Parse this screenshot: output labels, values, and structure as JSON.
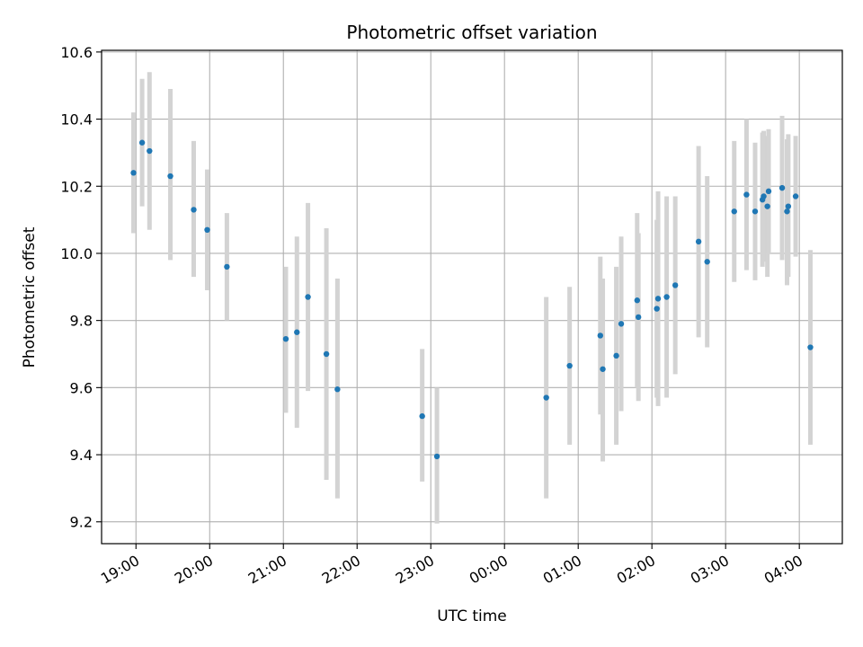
{
  "chart_data": {
    "type": "scatter",
    "title": "Photometric offset variation",
    "xlabel": "UTC time",
    "ylabel": "Photometric offset",
    "xlim": [
      "2024-01-01T18:32",
      "2024-01-02T04:35"
    ],
    "ylim": [
      9.135,
      10.605
    ],
    "grid": true,
    "legend": "none",
    "colors": {
      "point": "#1f77b4",
      "errorbar": "#d3d3d3",
      "grid": "#b0b0b0"
    },
    "x_ticks": [
      {
        "t": "2024-01-01T19:00",
        "label": "19:00"
      },
      {
        "t": "2024-01-01T20:00",
        "label": "20:00"
      },
      {
        "t": "2024-01-01T21:00",
        "label": "21:00"
      },
      {
        "t": "2024-01-01T22:00",
        "label": "22:00"
      },
      {
        "t": "2024-01-01T23:00",
        "label": "23:00"
      },
      {
        "t": "2024-01-02T00:00",
        "label": "00:00"
      },
      {
        "t": "2024-01-02T01:00",
        "label": "01:00"
      },
      {
        "t": "2024-01-02T02:00",
        "label": "02:00"
      },
      {
        "t": "2024-01-02T03:00",
        "label": "03:00"
      },
      {
        "t": "2024-01-02T04:00",
        "label": "04:00"
      }
    ],
    "y_ticks": [
      {
        "v": 9.2,
        "label": "9.2"
      },
      {
        "v": 9.4,
        "label": "9.4"
      },
      {
        "v": 9.6,
        "label": "9.6"
      },
      {
        "v": 9.8,
        "label": "9.8"
      },
      {
        "v": 10.0,
        "label": "10.0"
      },
      {
        "v": 10.2,
        "label": "10.2"
      },
      {
        "v": 10.4,
        "label": "10.4"
      },
      {
        "v": 10.6,
        "label": "10.6"
      }
    ],
    "points": [
      {
        "t": "2024-01-01T18:58",
        "y": 10.24,
        "lo": 10.06,
        "hi": 10.42
      },
      {
        "t": "2024-01-01T19:05",
        "y": 10.33,
        "lo": 10.14,
        "hi": 10.52
      },
      {
        "t": "2024-01-01T19:11",
        "y": 10.305,
        "lo": 10.07,
        "hi": 10.54
      },
      {
        "t": "2024-01-01T19:28",
        "y": 10.23,
        "lo": 9.98,
        "hi": 10.49
      },
      {
        "t": "2024-01-01T19:47",
        "y": 10.13,
        "lo": 9.93,
        "hi": 10.335
      },
      {
        "t": "2024-01-01T19:58",
        "y": 10.07,
        "lo": 9.89,
        "hi": 10.25
      },
      {
        "t": "2024-01-01T20:14",
        "y": 9.96,
        "lo": 9.8,
        "hi": 10.12
      },
      {
        "t": "2024-01-01T21:02",
        "y": 9.745,
        "lo": 9.525,
        "hi": 9.96
      },
      {
        "t": "2024-01-01T21:11",
        "y": 9.765,
        "lo": 9.48,
        "hi": 10.05
      },
      {
        "t": "2024-01-01T21:20",
        "y": 9.87,
        "lo": 9.59,
        "hi": 10.15
      },
      {
        "t": "2024-01-01T21:35",
        "y": 9.7,
        "lo": 9.325,
        "hi": 10.075
      },
      {
        "t": "2024-01-01T21:44",
        "y": 9.595,
        "lo": 9.27,
        "hi": 9.925
      },
      {
        "t": "2024-01-01T22:53",
        "y": 9.515,
        "lo": 9.32,
        "hi": 9.715
      },
      {
        "t": "2024-01-01T23:05",
        "y": 9.395,
        "lo": 9.195,
        "hi": 9.6
      },
      {
        "t": "2024-01-02T00:34",
        "y": 9.57,
        "lo": 9.27,
        "hi": 9.87
      },
      {
        "t": "2024-01-02T00:53",
        "y": 9.665,
        "lo": 9.43,
        "hi": 9.9
      },
      {
        "t": "2024-01-02T01:18",
        "y": 9.755,
        "lo": 9.52,
        "hi": 9.99
      },
      {
        "t": "2024-01-02T01:20",
        "y": 9.655,
        "lo": 9.38,
        "hi": 9.925
      },
      {
        "t": "2024-01-02T01:31",
        "y": 9.695,
        "lo": 9.43,
        "hi": 9.96
      },
      {
        "t": "2024-01-02T01:35",
        "y": 9.79,
        "lo": 9.53,
        "hi": 10.05
      },
      {
        "t": "2024-01-02T01:48",
        "y": 9.86,
        "lo": 9.6,
        "hi": 10.12
      },
      {
        "t": "2024-01-02T01:49",
        "y": 9.81,
        "lo": 9.56,
        "hi": 10.06
      },
      {
        "t": "2024-01-02T02:04",
        "y": 9.835,
        "lo": 9.57,
        "hi": 10.1
      },
      {
        "t": "2024-01-02T02:05",
        "y": 9.865,
        "lo": 9.545,
        "hi": 10.185
      },
      {
        "t": "2024-01-02T02:12",
        "y": 9.87,
        "lo": 9.57,
        "hi": 10.17
      },
      {
        "t": "2024-01-02T02:19",
        "y": 9.905,
        "lo": 9.64,
        "hi": 10.17
      },
      {
        "t": "2024-01-02T02:38",
        "y": 10.035,
        "lo": 9.75,
        "hi": 10.32
      },
      {
        "t": "2024-01-02T02:45",
        "y": 9.975,
        "lo": 9.72,
        "hi": 10.23
      },
      {
        "t": "2024-01-02T03:07",
        "y": 10.125,
        "lo": 9.915,
        "hi": 10.335
      },
      {
        "t": "2024-01-02T03:17",
        "y": 10.175,
        "lo": 9.95,
        "hi": 10.4
      },
      {
        "t": "2024-01-02T03:24",
        "y": 10.125,
        "lo": 9.92,
        "hi": 10.33
      },
      {
        "t": "2024-01-02T03:30",
        "y": 10.16,
        "lo": 9.96,
        "hi": 10.36
      },
      {
        "t": "2024-01-02T03:31",
        "y": 10.17,
        "lo": 9.975,
        "hi": 10.365
      },
      {
        "t": "2024-01-02T03:34",
        "y": 10.14,
        "lo": 9.93,
        "hi": 10.35
      },
      {
        "t": "2024-01-02T03:35",
        "y": 10.185,
        "lo": 10.0,
        "hi": 10.37
      },
      {
        "t": "2024-01-02T03:46",
        "y": 10.195,
        "lo": 9.98,
        "hi": 10.41
      },
      {
        "t": "2024-01-02T03:50",
        "y": 10.125,
        "lo": 9.905,
        "hi": 10.34
      },
      {
        "t": "2024-01-02T03:51",
        "y": 10.14,
        "lo": 9.93,
        "hi": 10.355
      },
      {
        "t": "2024-01-02T03:57",
        "y": 10.17,
        "lo": 9.99,
        "hi": 10.35
      },
      {
        "t": "2024-01-02T04:09",
        "y": 9.72,
        "lo": 9.43,
        "hi": 10.01
      }
    ]
  }
}
